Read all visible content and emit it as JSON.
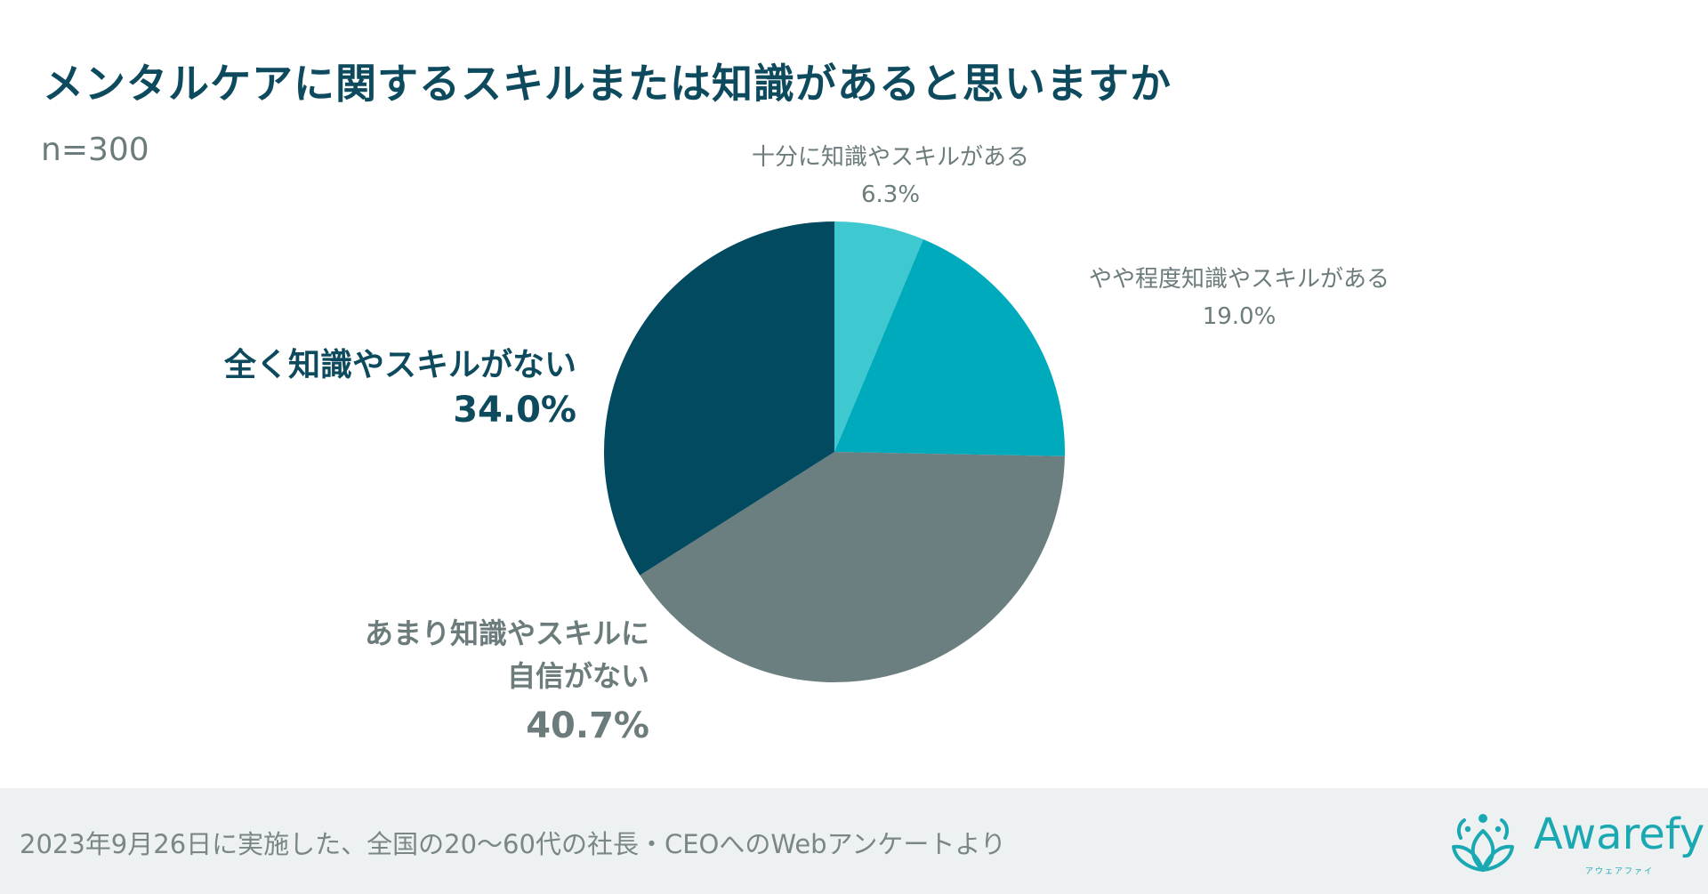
{
  "chart_data": {
    "type": "pie",
    "title": "メンタルケアに関するスキルまたは知識があると思いますか",
    "subtitle": "n=300",
    "categories": [
      "十分に知識やスキルがある",
      "やや程度知識やスキルがある",
      "あまり知識やスキルに自信がない",
      "全く知識やスキルがない"
    ],
    "values": [
      6.3,
      19.0,
      40.7,
      34.0
    ],
    "labels": [
      {
        "lines": [
          "十分に知識やスキルがある"
        ],
        "value": "6.3%"
      },
      {
        "lines": [
          "やや程度知識やスキルがある"
        ],
        "value": "19.0%"
      },
      {
        "lines": [
          "あまり知識やスキルに",
          "自信がない"
        ],
        "value": "40.7%"
      },
      {
        "lines": [
          "全く知識やスキルがない"
        ],
        "value": "34.0%"
      }
    ],
    "colors": [
      "#3ec9d0",
      "#00aabd",
      "#6c7f80",
      "#024a60"
    ],
    "legend": "none"
  },
  "footer": {
    "note": "2023年9月26日に実施した、全国の20〜60代の社長・CEOへのWebアンケートより",
    "logo": {
      "name": "Awarefy",
      "sub": "アウェアファイ",
      "icon": "lotus-icon",
      "color": "#1aa9b3"
    }
  }
}
